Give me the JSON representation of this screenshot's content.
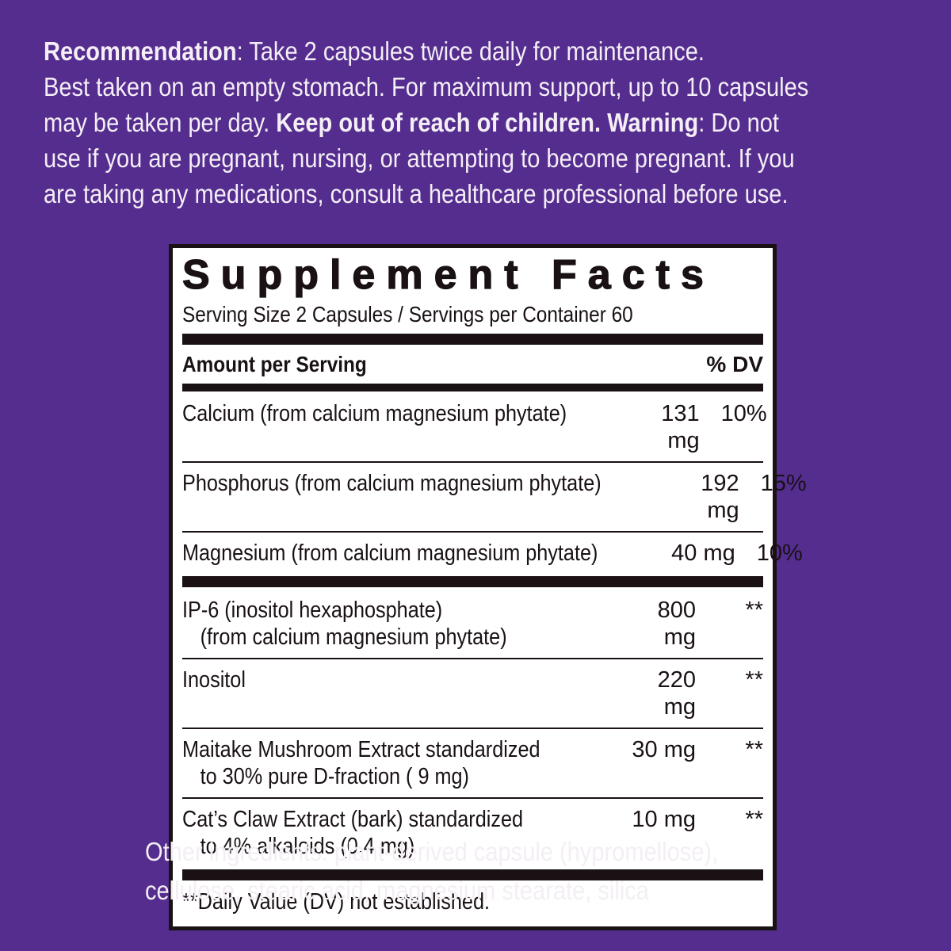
{
  "colors": {
    "background": "#542d8f",
    "light_text": "#f4eef5",
    "panel_bg": "#ffffff",
    "panel_ink": "#191114"
  },
  "recommendation": {
    "lines": [
      {
        "segments": [
          {
            "text": "Recommendation",
            "bold": true
          },
          {
            "text": ": Take 2 capsules twice daily for maintenance.",
            "bold": false
          }
        ]
      },
      {
        "segments": [
          {
            "text": "Best taken on an empty stomach. For maximum support, up to 10 capsules",
            "bold": false
          }
        ]
      },
      {
        "segments": [
          {
            "text": "may be taken per day. ",
            "bold": false
          },
          {
            "text": "Keep out of reach of children. Warning",
            "bold": true
          },
          {
            "text": ": Do not",
            "bold": false
          }
        ]
      },
      {
        "segments": [
          {
            "text": "use if you are pregnant, nursing, or attempting to become pregnant. If you",
            "bold": false
          }
        ]
      },
      {
        "segments": [
          {
            "text": "are taking any medications, consult a healthcare professional before use.",
            "bold": false
          }
        ]
      }
    ]
  },
  "supplement_facts": {
    "title": "Supplement Facts",
    "serving_line": "Serving Size 2 Capsules / Servings per Container 60",
    "header": {
      "amount_label": "Amount per Serving",
      "dv_label": "% DV"
    },
    "mineral_rows": [
      {
        "name": "Calcium (from calcium magnesium phytate)",
        "amount": "131 mg",
        "dv": "10%"
      },
      {
        "name": "Phosphorus (from calcium magnesium phytate)",
        "amount": "192 mg",
        "dv": "15%"
      },
      {
        "name": "Magnesium (from calcium magnesium phytate)",
        "amount": "40 mg",
        "dv": "10%"
      }
    ],
    "botanical_rows": [
      {
        "name": "IP-6 (inositol hexaphosphate)",
        "name_line2": "(from calcium magnesium phytate)",
        "amount": "800 mg",
        "dv": "**"
      },
      {
        "name": "Inositol",
        "amount": "220 mg",
        "dv": "**"
      },
      {
        "name": "Maitake Mushroom Extract standardized",
        "name_line2": "to 30% pure D-fraction ( 9 mg)",
        "amount": "30 mg",
        "dv": "**"
      },
      {
        "name": "Cat’s Claw Extract (bark) standardized",
        "name_line2": "to 4% alkaloids (0.4 mg)",
        "amount": "10 mg",
        "dv": "**"
      }
    ],
    "footnote": "**Daily Value (DV) not established."
  },
  "other_ingredients": {
    "lines": [
      "Other ingredients: plant-derived capsule (hypromellose),",
      "cellulose, stearic acid, magnesium stearate, silica"
    ]
  }
}
